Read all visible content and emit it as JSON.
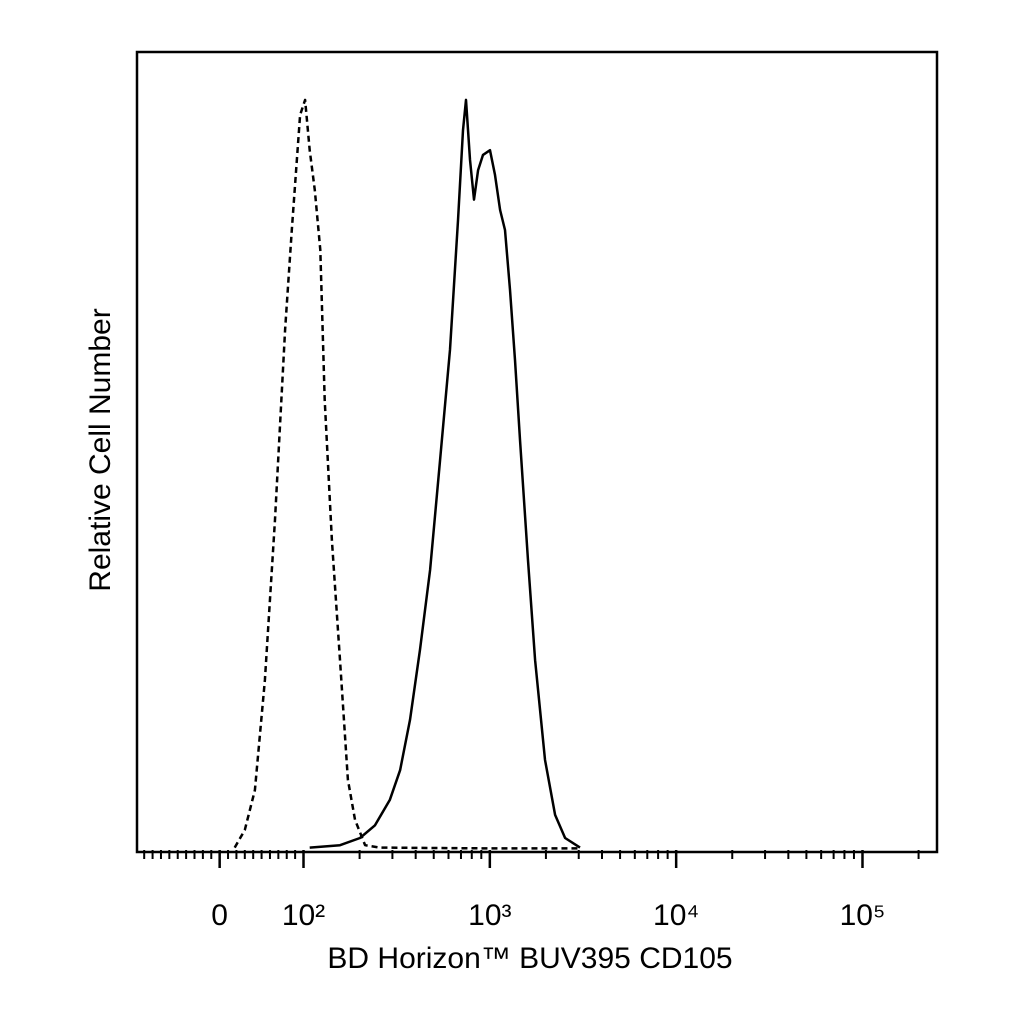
{
  "chart_data": {
    "type": "line",
    "xlabel": "BD Horizon™ BUV395 CD105",
    "ylabel": "Relative Cell Number",
    "xscale": "biexponential",
    "xlim": [
      -95,
      245000
    ],
    "ylim": [
      0,
      100
    ],
    "xticks": [
      0,
      {
        "value": 100,
        "label": "10²"
      },
      {
        "value": 1000,
        "label": "10³"
      },
      {
        "value": 10000,
        "label": "10⁴"
      },
      {
        "value": 100000,
        "label": "10⁵"
      }
    ],
    "xminorticks": [
      -90,
      -80,
      -70,
      -60,
      -50,
      -40,
      -30,
      -20,
      -10,
      10,
      20,
      30,
      40,
      50,
      60,
      70,
      80,
      90,
      200,
      300,
      400,
      500,
      600,
      700,
      800,
      900,
      2000,
      3000,
      4000,
      5000,
      6000,
      7000,
      8000,
      9000,
      20000,
      30000,
      40000,
      50000,
      60000,
      70000,
      80000,
      90000,
      200000
    ],
    "series": [
      {
        "color": "#000000",
        "dashed": true,
        "x": [
          18,
          30,
          42,
          54,
          66,
          78,
          86,
          96,
          102,
          108,
          115,
          123,
          130,
          142,
          157,
          173,
          189,
          214,
          257,
          1000,
          3000
        ],
        "values": [
          0.3,
          2.5,
          7.5,
          21.3,
          41.4,
          65.2,
          77.7,
          92.1,
          94,
          87.7,
          82.7,
          75.2,
          56.4,
          38.8,
          23.8,
          8.8,
          3.8,
          0.6,
          0.3,
          0.2,
          0.2
        ]
      },
      {
        "color": "#000000",
        "dashed": false,
        "x": [
          108,
          157,
          201,
          242,
          291,
          330,
          373,
          422,
          478,
          541,
          611,
          675,
          718,
          745,
          783,
          822,
          865,
          919,
          1002,
          1066,
          1135,
          1206,
          1283,
          1365,
          1452,
          1603,
          1750,
          1978,
          2240,
          2535,
          3048
        ],
        "values": [
          0.3,
          0.6,
          1.5,
          3.1,
          6.3,
          10,
          16.3,
          25.1,
          35.1,
          48.9,
          62.7,
          78.9,
          90.2,
          94,
          86.5,
          81.5,
          85.2,
          87.1,
          87.7,
          84.6,
          80.2,
          77.7,
          70.2,
          61.4,
          51.4,
          36.3,
          23.8,
          11.3,
          4.4,
          1.5,
          0.3
        ]
      }
    ]
  }
}
